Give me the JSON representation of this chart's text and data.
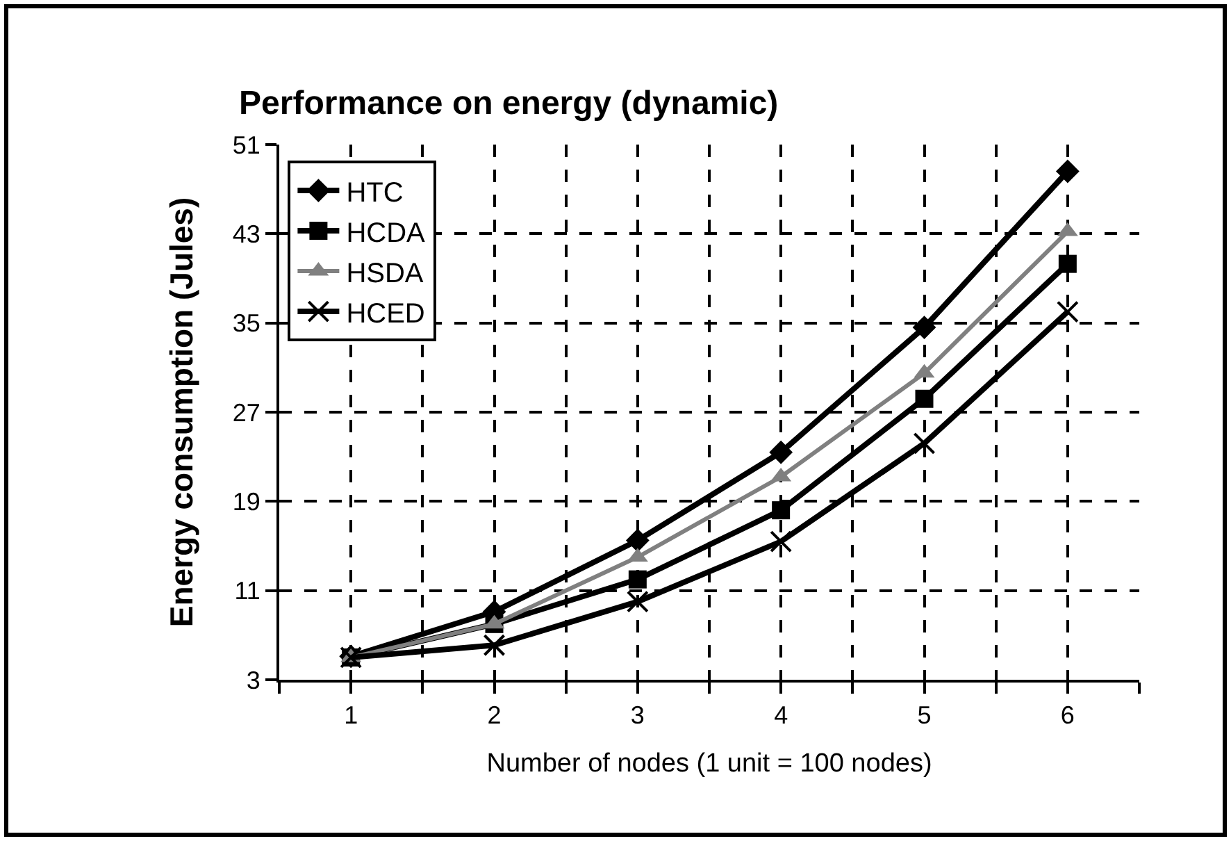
{
  "chart_data": {
    "type": "line",
    "title": "Performance on energy (dynamic)",
    "xlabel": "Number of nodes (1 unit = 100 nodes)",
    "ylabel": "Energy consumption (Jules)",
    "x": [
      1,
      2,
      3,
      4,
      5,
      6
    ],
    "xlim": [
      0.5,
      6.5
    ],
    "xticks": [
      {
        "value": 0.5,
        "label": null
      },
      1,
      {
        "value": 1.5,
        "label": null
      },
      2,
      {
        "value": 2.5,
        "label": null
      },
      3,
      {
        "value": 3.5,
        "label": null
      },
      4,
      {
        "value": 4.5,
        "label": null
      },
      5,
      {
        "value": 5.5,
        "label": null
      },
      6,
      {
        "value": 6.5,
        "label": null
      }
    ],
    "ylim": [
      3,
      51
    ],
    "yticks": [
      3,
      11,
      19,
      27,
      35,
      43,
      51
    ],
    "grid": true,
    "legend": "top left",
    "line_style": "solid",
    "series": [
      {
        "name": "HTC",
        "color": "#000000",
        "marker": "diamond",
        "values": [
          5.1,
          9.1,
          15.5,
          23.4,
          34.6,
          48.6
        ]
      },
      {
        "name": "HCDA",
        "color": "#000000",
        "marker": "square",
        "values": [
          5,
          8,
          12,
          18.2,
          28.2,
          40.3
        ]
      },
      {
        "name": "HSDA",
        "color": "#808080",
        "marker": "triangle",
        "values": [
          5,
          8,
          14,
          21.2,
          30.5,
          43.2
        ]
      },
      {
        "name": "HCED",
        "color": "#000000",
        "marker": "cross",
        "values": [
          5,
          6.1,
          10,
          15.4,
          24.2,
          36
        ]
      }
    ]
  }
}
